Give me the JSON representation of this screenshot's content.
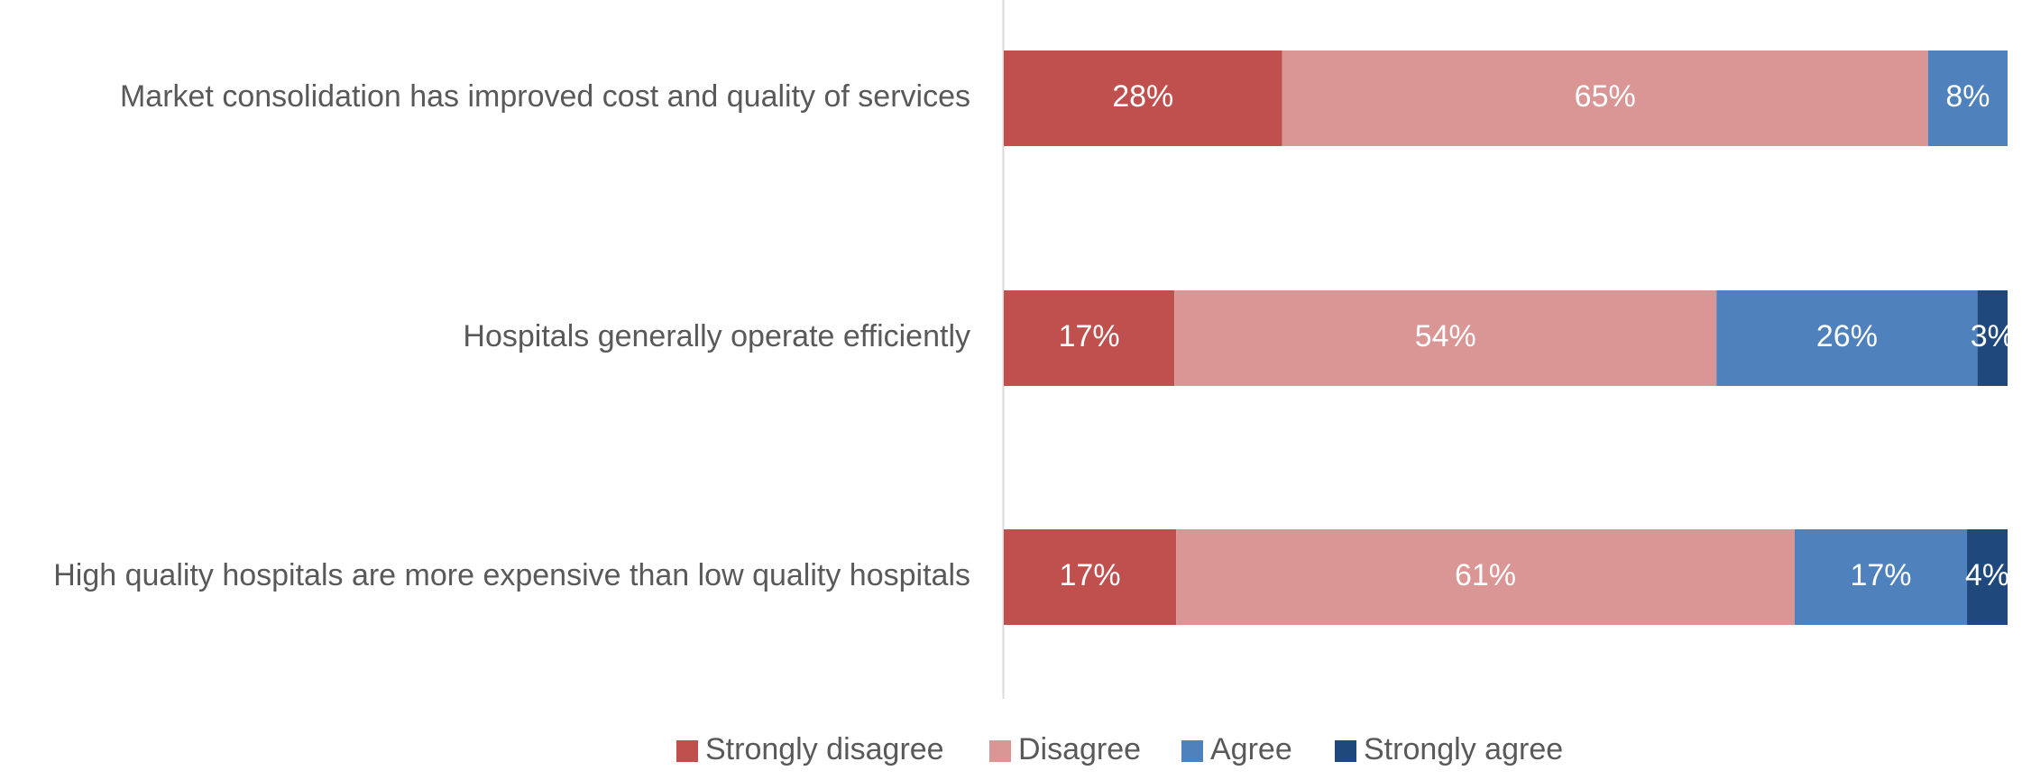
{
  "chart_data": {
    "type": "bar",
    "orientation": "horizontal",
    "stacked": true,
    "categories": [
      "Market consolidation has improved cost and quality of services",
      "Hospitals generally operate efficiently",
      "High quality hospitals are more expensive than low quality hospitals"
    ],
    "series": [
      {
        "name": "Strongly disagree",
        "color": "#C0504D",
        "values": [
          28,
          17,
          17
        ],
        "labels": [
          "28%",
          "17%",
          "17%"
        ]
      },
      {
        "name": "Disagree",
        "color": "#D99694",
        "values": [
          65,
          54,
          61
        ],
        "labels": [
          "65%",
          "54%",
          "61%"
        ]
      },
      {
        "name": "Agree",
        "color": "#4F81BD",
        "values": [
          8,
          26,
          17
        ],
        "labels": [
          "8%",
          "26%",
          "17%"
        ]
      },
      {
        "name": "Strongly agree",
        "color": "#1F497D",
        "values": [
          0,
          3,
          4
        ],
        "labels": [
          "",
          "3%",
          "4%"
        ]
      }
    ],
    "legend_position": "bottom",
    "grid": false,
    "title": "",
    "xlabel": "",
    "ylabel": ""
  }
}
